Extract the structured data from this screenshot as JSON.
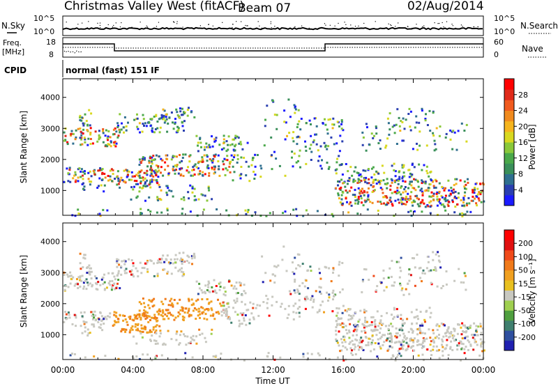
{
  "header": {
    "title": "Christmas Valley West (fitACF)",
    "beam": "Beam 07",
    "date": "02/Aug/2014"
  },
  "strips": {
    "nsky_label": "N.Sky",
    "nsearch_label": "N.Search",
    "nsky_ticks": [
      "10^5",
      "10^0"
    ],
    "nsearch_ticks": [
      "10^5",
      "10^0"
    ],
    "freq_label_1": "Freq.",
    "freq_label_2": "[MHz]",
    "freq_ticks": [
      "18",
      "8"
    ],
    "nave_label": "Nave",
    "nave_ticks": [
      "60",
      "0"
    ],
    "cpid_label": "CPID",
    "cpid_value": "normal (fast) 151 IF"
  },
  "chart_data": [
    {
      "type": "heatmap",
      "name": "power-panel",
      "ylabel": "Slant Range [km]",
      "y_ticks": [
        1000,
        2000,
        3000,
        4000
      ],
      "ylim": [
        200,
        4600
      ],
      "xlim": [
        0,
        24
      ],
      "colorbar": {
        "label": "Power [dB]",
        "ticks": [
          "4",
          "8",
          "12",
          "16",
          "20",
          "24",
          "28"
        ],
        "colors": [
          "#1a1aff",
          "#2a3fb0",
          "#2f6f8f",
          "#3a8f5a",
          "#4aa84a",
          "#8ac83a",
          "#d8d820",
          "#f5b41e",
          "#f08a1e",
          "#f05a1e",
          "#e02a1a",
          "#ff0000"
        ]
      }
    },
    {
      "type": "heatmap",
      "name": "velocity-panel",
      "ylabel": "Slant Range [km]",
      "xlabel": "Time UT",
      "x_ticks": [
        "00:00",
        "04:00",
        "08:00",
        "12:00",
        "16:00",
        "20:00",
        "00:00"
      ],
      "y_ticks": [
        1000,
        2000,
        3000,
        4000
      ],
      "ylim": [
        200,
        4600
      ],
      "xlim": [
        0,
        24
      ],
      "colorbar": {
        "label": "Velocity [m s⁻¹]",
        "ticks": [
          "200",
          "100",
          "50",
          "15",
          "-15",
          "-50",
          "-100",
          "-200"
        ],
        "colors": [
          "#2020b0",
          "#2f4f9f",
          "#3f7f6f",
          "#4f9f3f",
          "#9fcf4f",
          "#c8c8c0",
          "#e8c020",
          "#f0a020",
          "#f07a1a",
          "#f04a1a",
          "#e01010",
          "#ff0000"
        ]
      }
    }
  ]
}
